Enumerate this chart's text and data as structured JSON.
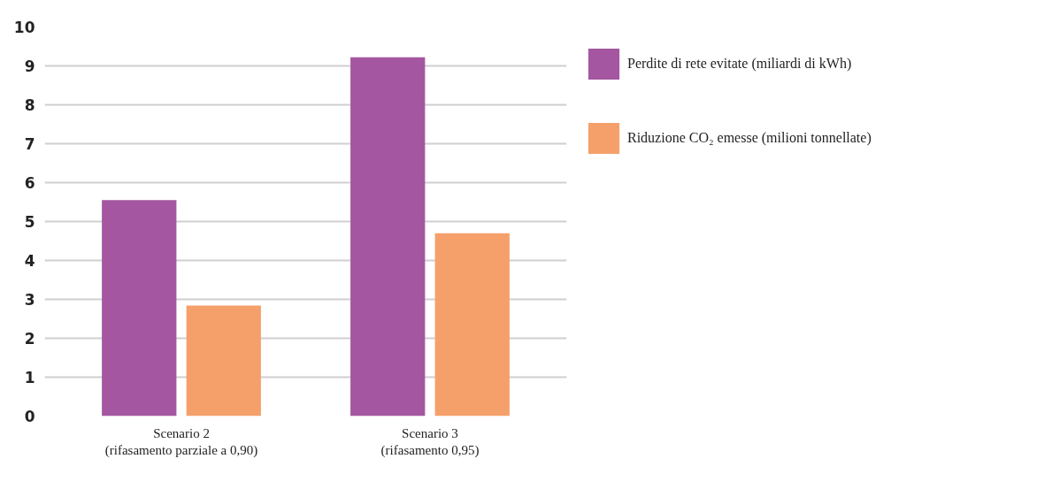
{
  "chart_data": {
    "type": "bar",
    "categories": [
      "Scenario 2\n(rifasamento parziale a 0,90)",
      "Scenario 3\n(rifasamento 0,95)"
    ],
    "series": [
      {
        "name": "Perdite di rete evitate (miliardi di kWh)",
        "color": "#a457a0",
        "values": [
          5.55,
          9.22
        ]
      },
      {
        "name": "Riduzione CO₂ emesse (milioni tonnellate)",
        "color": "#f5a06b",
        "values": [
          2.84,
          4.7
        ]
      }
    ],
    "ylim": [
      0,
      10
    ],
    "yticks": [
      0,
      1,
      2,
      3,
      4,
      5,
      6,
      7,
      8,
      9,
      10
    ],
    "grid": "y",
    "legend": "right"
  }
}
